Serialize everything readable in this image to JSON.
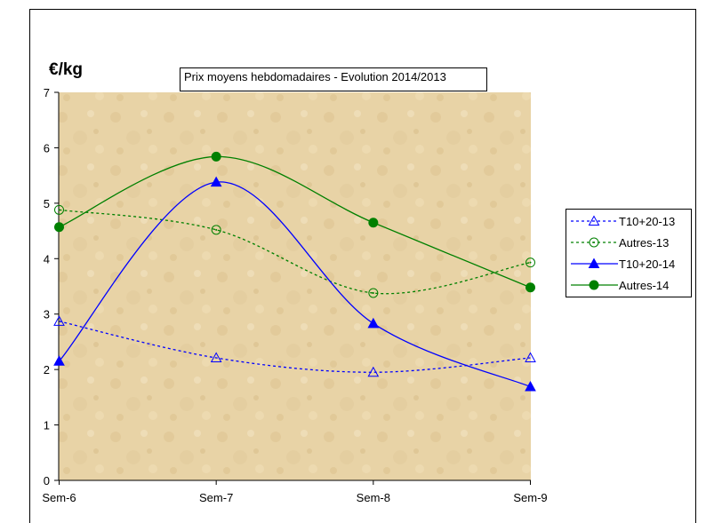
{
  "chart_data": {
    "type": "line",
    "title": "Prix moyens hebdomadaires - Evolution 2014/2013",
    "ylabel": "€/kg",
    "xlabel": "",
    "categories": [
      "Sem-6",
      "Sem-7",
      "Sem-8",
      "Sem-9"
    ],
    "ylim": [
      0,
      7
    ],
    "yticks": [
      0,
      1,
      2,
      3,
      4,
      5,
      6,
      7
    ],
    "grid": false,
    "legend_position": "right",
    "series": [
      {
        "name": "T10+20-13",
        "values": [
          2.87,
          2.21,
          1.95,
          2.21
        ],
        "color": "#0000FF",
        "dashed": true,
        "marker": "triangle-open"
      },
      {
        "name": "Autres-13",
        "values": [
          4.88,
          4.52,
          3.38,
          3.93
        ],
        "color": "#008000",
        "dashed": true,
        "marker": "circle-open"
      },
      {
        "name": "T10+20-14",
        "values": [
          2.15,
          5.38,
          2.83,
          1.69
        ],
        "color": "#0000FF",
        "dashed": false,
        "marker": "triangle-filled"
      },
      {
        "name": "Autres-14",
        "values": [
          4.57,
          5.84,
          4.65,
          3.48
        ],
        "color": "#008000",
        "dashed": false,
        "marker": "circle-filled"
      }
    ]
  }
}
